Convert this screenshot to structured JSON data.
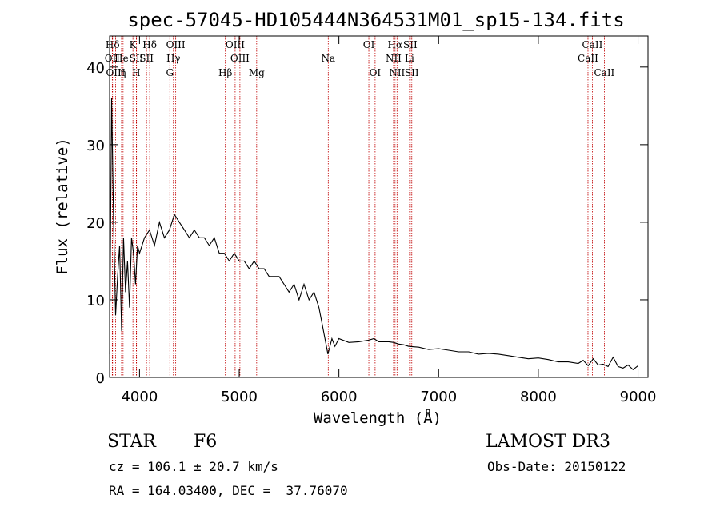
{
  "chart_data": {
    "type": "line",
    "title": "spec-57045-HD105444N364531M01_sp15-134.fits",
    "xlabel": "Wavelength (Å)",
    "ylabel": "Flux (relative)",
    "xlim": [
      3700,
      9100
    ],
    "ylim": [
      0,
      44
    ],
    "x_ticks": [
      4000,
      5000,
      6000,
      7000,
      8000,
      9000
    ],
    "y_ticks": [
      0,
      10,
      20,
      30,
      40
    ],
    "series": [
      {
        "name": "flux",
        "x": [
          3700,
          3720,
          3740,
          3760,
          3780,
          3800,
          3820,
          3840,
          3860,
          3880,
          3900,
          3920,
          3940,
          3960,
          3980,
          4000,
          4050,
          4100,
          4150,
          4200,
          4250,
          4300,
          4350,
          4400,
          4450,
          4500,
          4550,
          4600,
          4650,
          4700,
          4750,
          4800,
          4850,
          4900,
          4950,
          5000,
          5050,
          5100,
          5150,
          5200,
          5250,
          5300,
          5350,
          5400,
          5450,
          5500,
          5550,
          5600,
          5650,
          5700,
          5750,
          5800,
          5830,
          5860,
          5890,
          5910,
          5930,
          5960,
          6000,
          6100,
          6200,
          6300,
          6350,
          6400,
          6500,
          6550,
          6600,
          6650,
          6700,
          6800,
          6900,
          7000,
          7100,
          7200,
          7300,
          7400,
          7500,
          7600,
          7700,
          7800,
          7900,
          8000,
          8100,
          8200,
          8300,
          8400,
          8450,
          8500,
          8550,
          8600,
          8650,
          8700,
          8750,
          8800,
          8850,
          8900,
          8950,
          9000
        ],
        "y": [
          3,
          36,
          20,
          8,
          13,
          17,
          6,
          18,
          11,
          15,
          9,
          18,
          16,
          12,
          17,
          16,
          18,
          19,
          17,
          20,
          18,
          19,
          21,
          20,
          19,
          18,
          19,
          18,
          18,
          17,
          18,
          16,
          16,
          15,
          16,
          15,
          15,
          14,
          15,
          14,
          14,
          13,
          13,
          13,
          12,
          11,
          12,
          10,
          12,
          10,
          11,
          9,
          7,
          5,
          3,
          4,
          5,
          4,
          5,
          4.5,
          4.6,
          4.8,
          5,
          4.6,
          4.6,
          4.5,
          4.3,
          4.2,
          4.0,
          3.9,
          3.6,
          3.7,
          3.5,
          3.3,
          3.3,
          3.0,
          3.1,
          3.0,
          2.8,
          2.6,
          2.4,
          2.5,
          2.3,
          2.0,
          2.0,
          1.8,
          2.2,
          1.5,
          2.4,
          1.6,
          1.7,
          1.4,
          2.6,
          1.4,
          1.2,
          1.6,
          1.0,
          1.5
        ]
      }
    ],
    "lines": [
      {
        "label": "Hδ",
        "w": 3730,
        "row": 0
      },
      {
        "label": "OII",
        "w": 3727,
        "row": 1
      },
      {
        "label": "OIII",
        "w": 3760,
        "row": 2
      },
      {
        "label": "He",
        "w": 3820,
        "row": 1
      },
      {
        "label": "η",
        "w": 3835,
        "row": 2
      },
      {
        "label": "K",
        "w": 3934,
        "row": 0
      },
      {
        "label": "SII",
        "w": 3970,
        "row": 1
      },
      {
        "label": "H",
        "w": 3968,
        "row": 2
      },
      {
        "label": "Hδ",
        "w": 4102,
        "row": 0
      },
      {
        "label": "SII",
        "w": 4070,
        "row": 1
      },
      {
        "label": "OIII",
        "w": 4363,
        "row": 0
      },
      {
        "label": "Hγ",
        "w": 4340,
        "row": 1
      },
      {
        "label": "G",
        "w": 4304,
        "row": 2
      },
      {
        "label": "Hβ",
        "w": 4861,
        "row": 2
      },
      {
        "label": "OIII",
        "w": 4959,
        "row": 0
      },
      {
        "label": "OIII",
        "w": 5007,
        "row": 1
      },
      {
        "label": "Mg",
        "w": 5175,
        "row": 2
      },
      {
        "label": "Na",
        "w": 5893,
        "row": 1
      },
      {
        "label": "OI",
        "w": 6300,
        "row": 0
      },
      {
        "label": "OI",
        "w": 6363,
        "row": 2
      },
      {
        "label": "Hα",
        "w": 6563,
        "row": 0
      },
      {
        "label": "NII",
        "w": 6548,
        "row": 1
      },
      {
        "label": "NII",
        "w": 6583,
        "row": 2
      },
      {
        "label": "SII",
        "w": 6716,
        "row": 0
      },
      {
        "label": "Li",
        "w": 6708,
        "row": 1
      },
      {
        "label": "SII",
        "w": 6731,
        "row": 2
      },
      {
        "label": "CaII",
        "w": 8542,
        "row": 0
      },
      {
        "label": "CaII",
        "w": 8498,
        "row": 1
      },
      {
        "label": "CaII",
        "w": 8662,
        "row": 2
      }
    ],
    "line_color": "#c00000",
    "spectrum_color": "#000000"
  },
  "info": {
    "object_class": "STAR",
    "subclass": "F6",
    "survey": "LAMOST DR3",
    "redshift": "cz = 106.1 ± 20.7 km/s",
    "obs_date": "Obs-Date: 20150122",
    "coords": "RA = 164.03400, DEC =  37.76070"
  }
}
